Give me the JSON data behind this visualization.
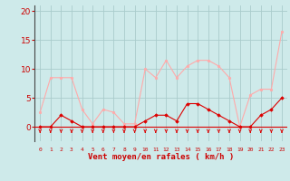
{
  "x": [
    0,
    1,
    2,
    3,
    4,
    5,
    6,
    7,
    8,
    9,
    10,
    11,
    12,
    13,
    14,
    15,
    16,
    17,
    18,
    19,
    20,
    21,
    22,
    23
  ],
  "rafales": [
    2.5,
    8.5,
    8.5,
    8.5,
    3.0,
    0.5,
    3.0,
    2.5,
    0.5,
    0.5,
    10.0,
    8.5,
    11.5,
    8.5,
    10.5,
    11.5,
    11.5,
    10.5,
    8.5,
    0.0,
    5.5,
    6.5,
    6.5,
    16.5
  ],
  "moyen": [
    0.0,
    0.0,
    2.0,
    1.0,
    0.0,
    0.0,
    0.0,
    0.0,
    0.0,
    0.0,
    1.0,
    2.0,
    2.0,
    1.0,
    4.0,
    4.0,
    3.0,
    2.0,
    1.0,
    0.0,
    0.0,
    2.0,
    3.0,
    5.0
  ],
  "bg_color": "#ceeaea",
  "grid_color": "#aacccc",
  "line_color_rafales": "#ffaaaa",
  "line_color_moyen": "#dd0000",
  "arrow_color": "#dd0000",
  "xlabel": "Vent moyen/en rafales ( km/h )",
  "xlabel_color": "#cc0000",
  "tick_color": "#cc0000",
  "yticks": [
    0,
    5,
    10,
    15,
    20
  ],
  "ylim": [
    -2.5,
    21
  ],
  "xlim": [
    -0.5,
    23.5
  ]
}
